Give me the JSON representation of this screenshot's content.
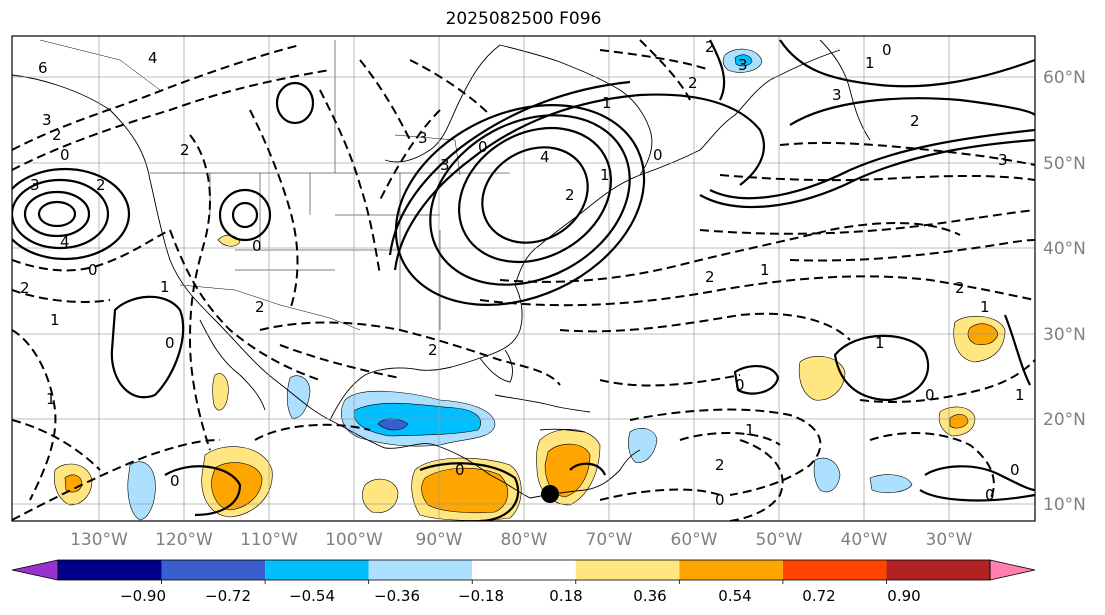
{
  "title": "2025082500 F096",
  "lat_labels": [
    "60°N",
    "50°N",
    "40°N",
    "30°N",
    "20°N",
    "10°N"
  ],
  "lon_labels": [
    "130°W",
    "120°W",
    "110°W",
    "100°W",
    "90°W",
    "80°W",
    "70°W",
    "60°W",
    "50°W",
    "40°W",
    "30°W"
  ],
  "colorbar": {
    "ticks": [
      "−0.90",
      "−0.72",
      "−0.54",
      "−0.36",
      "−0.18",
      "0.18",
      "0.36",
      "0.54",
      "0.72",
      "0.90"
    ],
    "colors": [
      "#9932cc",
      "#00008b",
      "#3a5fcd",
      "#00bfff",
      "#ade0ff",
      "#ffffff",
      "#ffe680",
      "#ffa500",
      "#ff4500",
      "#b22222",
      "#ff7fae"
    ]
  },
  "contour_labels": [
    "6",
    "4",
    "3",
    "2",
    "0",
    "3",
    "4",
    "0",
    "0",
    "2",
    "1",
    "0",
    "2",
    "3",
    "2",
    "1",
    "0",
    "4",
    "2",
    "1",
    "3",
    "2",
    "0",
    "2",
    "3",
    "1",
    "0",
    "2",
    "2",
    "1",
    "2",
    "1",
    "0",
    "0",
    "1",
    "1",
    "1",
    "0",
    "0",
    "2",
    "3",
    "0",
    "0",
    "2",
    "2",
    "1",
    "0",
    "1",
    "3"
  ],
  "marker": "black-dot"
}
